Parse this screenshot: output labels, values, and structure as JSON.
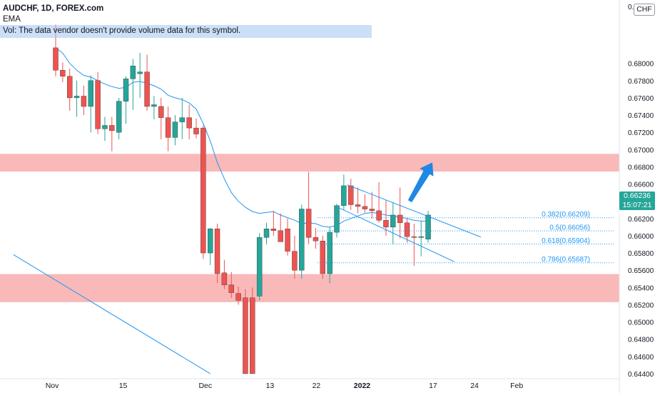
{
  "legend": {
    "symbol": "AUDCHF, 1D, FOREX.com",
    "indicator": "EMA",
    "volume_note": "Vol: The data vendor doesn't provide volume data for this symbol."
  },
  "currency_badge": "CHF",
  "price_tag": {
    "price": "0.66236",
    "countdown": "15:07:21"
  },
  "colors": {
    "up": "#26a69a",
    "down": "#ef5350",
    "ema": "#2196f3",
    "zone": "#f7a1a1",
    "fib": "#2196f3",
    "arrow": "#1e88e5"
  },
  "chart_data": {
    "type": "candlestick",
    "symbol": "AUDCHF",
    "timeframe": "1D",
    "ylim": [
      0.6435,
      0.6866
    ],
    "y_ticks": [
      "0.68000",
      "0.67800",
      "0.67600",
      "0.67400",
      "0.67200",
      "0.67000",
      "0.66800",
      "0.66600",
      "0.66400",
      "0.66200",
      "0.66000",
      "0.65800",
      "0.65600",
      "0.65400",
      "0.65200",
      "0.65000",
      "0.64800",
      "0.64600",
      "0.64400"
    ],
    "y_tick_top_partial": "0.682",
    "x_ticks": [
      {
        "label": "Nov",
        "bar": -0.5
      },
      {
        "label": "15",
        "bar": 9.6
      },
      {
        "label": "Dec",
        "bar": 21.3
      },
      {
        "label": "13",
        "bar": 30.5
      },
      {
        "label": "22",
        "bar": 37.1
      },
      {
        "label": "2022",
        "bar": 43.6
      },
      {
        "label": "17",
        "bar": 53.7
      },
      {
        "label": "24",
        "bar": 59.6
      },
      {
        "label": "Feb",
        "bar": 65.6
      }
    ],
    "candles": [
      {
        "o": 0.6818,
        "h": 0.6845,
        "l": 0.6785,
        "c": 0.6792
      },
      {
        "o": 0.6792,
        "h": 0.6801,
        "l": 0.6778,
        "c": 0.6785
      },
      {
        "o": 0.6785,
        "h": 0.6794,
        "l": 0.6745,
        "c": 0.676
      },
      {
        "o": 0.676,
        "h": 0.678,
        "l": 0.6738,
        "c": 0.6762
      },
      {
        "o": 0.6762,
        "h": 0.6774,
        "l": 0.674,
        "c": 0.675
      },
      {
        "o": 0.675,
        "h": 0.6786,
        "l": 0.672,
        "c": 0.678
      },
      {
        "o": 0.678,
        "h": 0.679,
        "l": 0.6718,
        "c": 0.6724
      },
      {
        "o": 0.6724,
        "h": 0.6738,
        "l": 0.671,
        "c": 0.6728
      },
      {
        "o": 0.6728,
        "h": 0.6738,
        "l": 0.6698,
        "c": 0.6722
      },
      {
        "o": 0.672,
        "h": 0.676,
        "l": 0.6712,
        "c": 0.6756
      },
      {
        "o": 0.6756,
        "h": 0.6785,
        "l": 0.673,
        "c": 0.6782
      },
      {
        "o": 0.6782,
        "h": 0.6805,
        "l": 0.6746,
        "c": 0.6797
      },
      {
        "o": 0.6788,
        "h": 0.6812,
        "l": 0.676,
        "c": 0.679
      },
      {
        "o": 0.679,
        "h": 0.681,
        "l": 0.6745,
        "c": 0.675
      },
      {
        "o": 0.675,
        "h": 0.6762,
        "l": 0.6735,
        "c": 0.6752
      },
      {
        "o": 0.675,
        "h": 0.676,
        "l": 0.6712,
        "c": 0.6737
      },
      {
        "o": 0.6737,
        "h": 0.675,
        "l": 0.6698,
        "c": 0.6714
      },
      {
        "o": 0.6714,
        "h": 0.674,
        "l": 0.6705,
        "c": 0.6732
      },
      {
        "o": 0.6732,
        "h": 0.676,
        "l": 0.6712,
        "c": 0.6737
      },
      {
        "o": 0.6737,
        "h": 0.6752,
        "l": 0.6712,
        "c": 0.6725
      },
      {
        "o": 0.6725,
        "h": 0.6736,
        "l": 0.6713,
        "c": 0.6718
      },
      {
        "o": 0.6725,
        "h": 0.6728,
        "l": 0.6573,
        "c": 0.658
      },
      {
        "o": 0.658,
        "h": 0.6609,
        "l": 0.6566,
        "c": 0.6608
      },
      {
        "o": 0.6608,
        "h": 0.6614,
        "l": 0.6545,
        "c": 0.6556
      },
      {
        "o": 0.6557,
        "h": 0.6572,
        "l": 0.6538,
        "c": 0.6543
      },
      {
        "o": 0.6543,
        "h": 0.6558,
        "l": 0.6528,
        "c": 0.6534
      },
      {
        "o": 0.6533,
        "h": 0.6541,
        "l": 0.652,
        "c": 0.6525
      },
      {
        "o": 0.6528,
        "h": 0.6538,
        "l": 0.644,
        "c": 0.644
      },
      {
        "o": 0.6528,
        "h": 0.654,
        "l": 0.644,
        "c": 0.644
      },
      {
        "o": 0.653,
        "h": 0.6603,
        "l": 0.6525,
        "c": 0.6598
      },
      {
        "o": 0.6598,
        "h": 0.6615,
        "l": 0.659,
        "c": 0.6608
      },
      {
        "o": 0.6608,
        "h": 0.6629,
        "l": 0.66,
        "c": 0.6606
      },
      {
        "o": 0.6606,
        "h": 0.6626,
        "l": 0.6594,
        "c": 0.6593
      },
      {
        "o": 0.6608,
        "h": 0.662,
        "l": 0.6577,
        "c": 0.6582
      },
      {
        "o": 0.6582,
        "h": 0.66,
        "l": 0.655,
        "c": 0.656
      },
      {
        "o": 0.656,
        "h": 0.6636,
        "l": 0.655,
        "c": 0.6631
      },
      {
        "o": 0.6631,
        "h": 0.6674,
        "l": 0.659,
        "c": 0.6598
      },
      {
        "o": 0.6598,
        "h": 0.6609,
        "l": 0.6585,
        "c": 0.6594
      },
      {
        "o": 0.6594,
        "h": 0.66,
        "l": 0.655,
        "c": 0.6556
      },
      {
        "o": 0.6556,
        "h": 0.661,
        "l": 0.6545,
        "c": 0.6604
      },
      {
        "o": 0.6604,
        "h": 0.6637,
        "l": 0.6598,
        "c": 0.6635
      },
      {
        "o": 0.6635,
        "h": 0.6671,
        "l": 0.663,
        "c": 0.6658
      },
      {
        "o": 0.6658,
        "h": 0.6666,
        "l": 0.663,
        "c": 0.6636
      },
      {
        "o": 0.6636,
        "h": 0.6656,
        "l": 0.6626,
        "c": 0.6634
      },
      {
        "o": 0.6634,
        "h": 0.6648,
        "l": 0.6627,
        "c": 0.6631
      },
      {
        "o": 0.6631,
        "h": 0.6651,
        "l": 0.662,
        "c": 0.6629
      },
      {
        "o": 0.6629,
        "h": 0.6662,
        "l": 0.6615,
        "c": 0.6618
      },
      {
        "o": 0.6618,
        "h": 0.6641,
        "l": 0.66,
        "c": 0.661
      },
      {
        "o": 0.661,
        "h": 0.6639,
        "l": 0.659,
        "c": 0.6624
      },
      {
        "o": 0.6624,
        "h": 0.6656,
        "l": 0.6597,
        "c": 0.6615
      },
      {
        "o": 0.6615,
        "h": 0.662,
        "l": 0.6592,
        "c": 0.6599
      },
      {
        "o": 0.6599,
        "h": 0.6614,
        "l": 0.6565,
        "c": 0.6598
      },
      {
        "o": 0.6598,
        "h": 0.6617,
        "l": 0.6576,
        "c": 0.6599
      },
      {
        "o": 0.6596,
        "h": 0.6629,
        "l": 0.6592,
        "c": 0.6624
      }
    ],
    "ema": [
      0.6818,
      0.6812,
      0.68,
      0.6792,
      0.6786,
      0.6784,
      0.678,
      0.6776,
      0.6773,
      0.6771,
      0.6772,
      0.6778,
      0.6779,
      0.6777,
      0.6774,
      0.677,
      0.6763,
      0.676,
      0.6758,
      0.6754,
      0.6747,
      0.673,
      0.671,
      0.6685,
      0.6666,
      0.665,
      0.664,
      0.6633,
      0.6628,
      0.6626,
      0.6627,
      0.6628,
      0.6624,
      0.6621,
      0.6618,
      0.6614,
      0.6615,
      0.6614,
      0.6611,
      0.661,
      0.6612,
      0.6617,
      0.662,
      0.6623,
      0.6626,
      0.6627,
      0.6626,
      0.6624,
      0.6623,
      0.6622,
      0.662,
      0.6618,
      0.6617,
      0.6617
    ],
    "zones": [
      {
        "from": 0.66745,
        "to": 0.6695
      },
      {
        "from": 0.6523,
        "to": 0.65555
      }
    ],
    "fib_levels": [
      {
        "label": "0.382(0.66209)",
        "value": 0.66209
      },
      {
        "label": "0.5(0.66056)",
        "value": 0.66056
      },
      {
        "label": "0.618(0.65904)",
        "value": 0.65904
      },
      {
        "label": "0.786(0.65687)",
        "value": 0.65687
      }
    ],
    "trend_lines": [
      {
        "from": {
          "bar": 41.5,
          "y": 0.6659
        },
        "to": {
          "bar": 60.5,
          "y": 0.65985
        }
      },
      {
        "from": {
          "bar": 39.9,
          "y": 0.6634
        },
        "to": {
          "bar": 56.7,
          "y": 0.657
        }
      },
      {
        "from": {
          "bar": -6.0,
          "y": 0.6578
        },
        "to": {
          "bar": 22.0,
          "y": 0.644
        }
      }
    ],
    "arrow": {
      "from": {
        "bar": 50.4,
        "y": 0.664
      },
      "to": {
        "bar": 53.6,
        "y": 0.6685
      }
    },
    "last_price": 0.66236
  }
}
